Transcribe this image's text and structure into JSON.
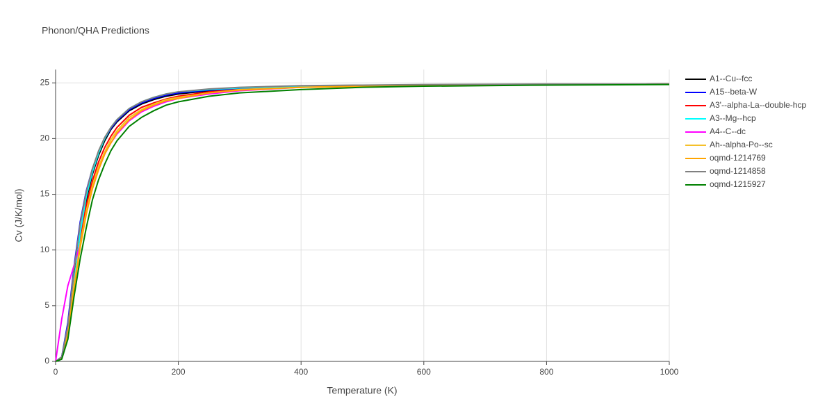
{
  "chart_data": {
    "type": "line",
    "title": "Phonon/QHA Predictions",
    "xlabel": "Temperature (K)",
    "ylabel": "Cv (J/K/mol)",
    "x": [
      0,
      10,
      20,
      30,
      40,
      50,
      60,
      70,
      80,
      90,
      100,
      120,
      140,
      160,
      180,
      200,
      250,
      300,
      400,
      500,
      600,
      800,
      1000
    ],
    "xlim": [
      0,
      1000
    ],
    "xticks": [
      0,
      200,
      400,
      600,
      800,
      1000
    ],
    "ylim": [
      0,
      26.2
    ],
    "yticks": [
      0,
      5,
      10,
      15,
      20,
      25
    ],
    "grid": true,
    "legend": "right",
    "series": [
      {
        "name": "A1--Cu--fcc",
        "color": "#000000",
        "values": [
          0,
          0.4,
          3,
          7.5,
          11.5,
          14.5,
          16.8,
          18.5,
          19.8,
          20.8,
          21.5,
          22.5,
          23.1,
          23.5,
          23.8,
          24.0,
          24.3,
          24.5,
          24.7,
          24.75,
          24.8,
          24.85,
          24.9
        ]
      },
      {
        "name": "A15--beta-W",
        "color": "#0000ff",
        "values": [
          0,
          0.4,
          3.5,
          8.5,
          12.5,
          15.3,
          17.3,
          18.8,
          20.0,
          20.9,
          21.6,
          22.6,
          23.2,
          23.6,
          23.9,
          24.1,
          24.35,
          24.5,
          24.7,
          24.75,
          24.8,
          24.85,
          24.9
        ]
      },
      {
        "name": "A3'--alpha-La--double-hcp",
        "color": "#ff0000",
        "values": [
          0,
          0.3,
          2.8,
          7.2,
          11,
          14,
          16.2,
          17.9,
          19.2,
          20.2,
          21.0,
          22.1,
          22.8,
          23.2,
          23.55,
          23.8,
          24.2,
          24.4,
          24.6,
          24.7,
          24.8,
          24.85,
          24.9
        ]
      },
      {
        "name": "A3--Mg--hcp",
        "color": "#00ffff",
        "values": [
          0,
          0.3,
          2,
          7,
          11.5,
          14.8,
          17.0,
          18.7,
          20.0,
          21.0,
          21.7,
          22.7,
          23.3,
          23.7,
          24.0,
          24.2,
          24.4,
          24.55,
          24.7,
          24.75,
          24.8,
          24.85,
          24.9
        ]
      },
      {
        "name": "A4--C--dc",
        "color": "#ff00ff",
        "values": [
          0,
          3.8,
          6.8,
          8.6,
          10.5,
          13.3,
          15.5,
          17.2,
          18.6,
          19.6,
          20.4,
          21.6,
          22.4,
          22.9,
          23.3,
          23.6,
          24.0,
          24.3,
          24.6,
          24.7,
          24.8,
          24.85,
          24.9
        ]
      },
      {
        "name": "Ah--alpha-Po--sc",
        "color": "#f5c02a",
        "values": [
          0,
          0.3,
          2.5,
          6.8,
          10.5,
          13.5,
          15.8,
          17.5,
          18.8,
          19.9,
          20.7,
          21.9,
          22.6,
          23.1,
          23.5,
          23.7,
          24.1,
          24.4,
          24.6,
          24.7,
          24.8,
          24.85,
          24.9
        ]
      },
      {
        "name": "oqmd-1214769",
        "color": "#ffa500",
        "values": [
          0,
          0.3,
          2.3,
          6.5,
          10.2,
          13.2,
          15.5,
          17.2,
          18.6,
          19.6,
          20.5,
          21.7,
          22.5,
          23.0,
          23.4,
          23.6,
          24.1,
          24.35,
          24.6,
          24.7,
          24.8,
          24.85,
          24.9
        ]
      },
      {
        "name": "oqmd-1214858",
        "color": "#808080",
        "values": [
          0,
          0.4,
          3.2,
          8.2,
          12.3,
          15.2,
          17.3,
          18.9,
          20.1,
          21.0,
          21.7,
          22.7,
          23.3,
          23.7,
          24.0,
          24.2,
          24.45,
          24.6,
          24.75,
          24.8,
          24.85,
          24.9,
          24.9
        ]
      },
      {
        "name": "oqmd-1215927",
        "color": "#008000",
        "values": [
          0,
          0.2,
          2.0,
          5.8,
          9.2,
          12.0,
          14.5,
          16.3,
          17.7,
          18.9,
          19.8,
          21.1,
          21.9,
          22.5,
          23.0,
          23.3,
          23.8,
          24.1,
          24.4,
          24.6,
          24.7,
          24.8,
          24.85
        ]
      }
    ]
  }
}
